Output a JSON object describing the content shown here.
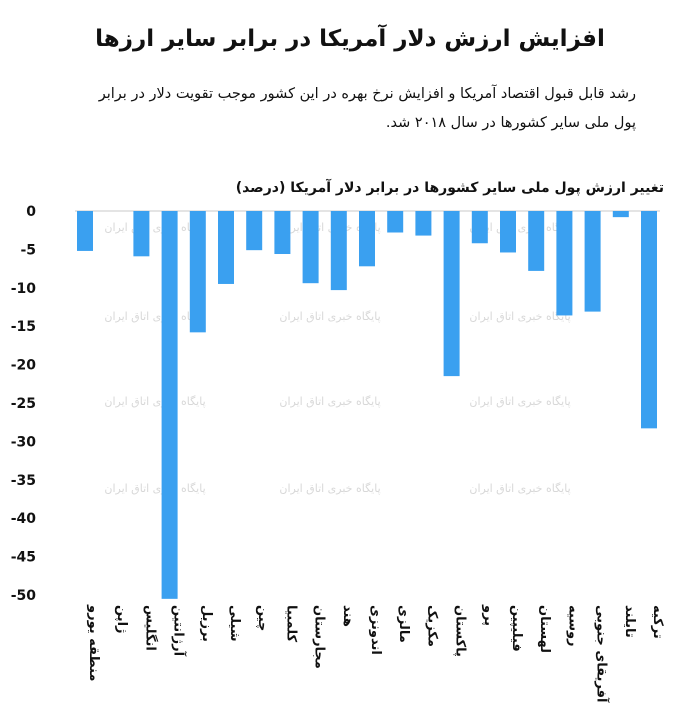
{
  "title": "افزایش ارزش دلار آمریکا در برابر سایر ارزها",
  "subtitle": "رشد قابل قبول اقتصاد آمریکا و افزایش نرخ بهره در این کشور موجب تقویت دلار در برابر پول ملی سایر کشورها در سال ۲۰۱۸ شد.",
  "watermark": "پایگاه خبری اتاق ایران",
  "chart_data": {
    "type": "bar",
    "title": "افزایش ارزش دلار آمریکا در برابر سایر ارزها",
    "ylabel": "تغییر ارزش پول ملی سایر کشورها در برابر دلار آمریکا (درصد)",
    "bar_color": "#3aa0f0",
    "ylim": [
      -50,
      0
    ],
    "yticks": [
      {
        "value": 0,
        "label": "0"
      },
      {
        "value": -5,
        "label": "-5"
      },
      {
        "value": -10,
        "label": "-10"
      },
      {
        "value": -15,
        "label": "-15"
      },
      {
        "value": -20,
        "label": "-20"
      },
      {
        "value": -25,
        "label": "-25"
      },
      {
        "value": -30,
        "label": "-30"
      },
      {
        "value": -35,
        "label": "-35"
      },
      {
        "value": -40,
        "label": "-40"
      },
      {
        "value": -45,
        "label": "-45"
      },
      {
        "value": -50,
        "label": "-50"
      }
    ],
    "categories": [
      "منطقه یورو",
      "ژاپن",
      "انگلیس",
      "آرژانتین",
      "برزیل",
      "شیلی",
      "چین",
      "کلمبیا",
      "مجارستان",
      "هند",
      "اندونزی",
      "مالزی",
      "مکزیک",
      "پاکستان",
      "پرو",
      "فیلیپین",
      "لهستان",
      "روسیه",
      "آفریقای جنوبی",
      "تایلند",
      "ترکیه"
    ],
    "values": [
      -5.2,
      0,
      -5.9,
      -50.5,
      -15.8,
      -9.5,
      -5.1,
      -5.6,
      -9.4,
      -10.3,
      -7.2,
      -2.8,
      -3.2,
      -21.5,
      -4.2,
      -5.4,
      -7.8,
      -13.6,
      -13.1,
      -0.8,
      -28.3
    ]
  }
}
